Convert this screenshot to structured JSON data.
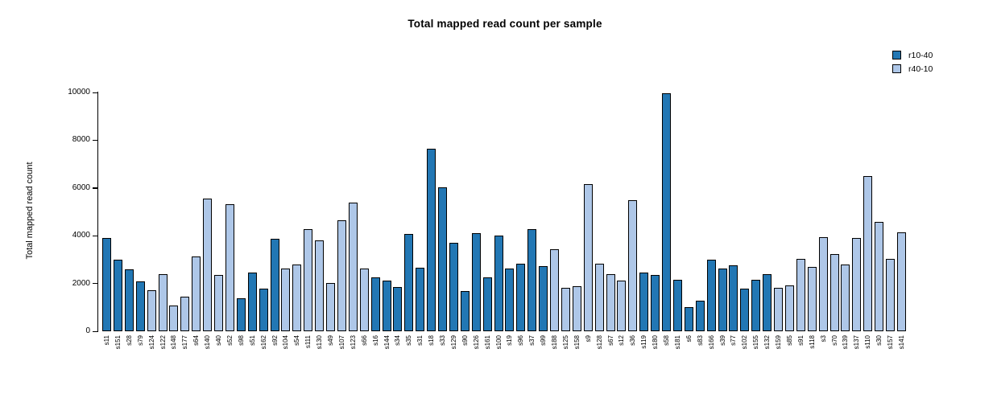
{
  "title": "Total mapped read count per sample",
  "y_axis": {
    "label": "Total mapped read count"
  },
  "legend": {
    "items": [
      {
        "label": "r10-40"
      },
      {
        "label": "r40-10"
      }
    ]
  },
  "colors": {
    "dark_blue": "#2277b4",
    "light_blue": "#aec7e8",
    "bar_border": "#000000"
  },
  "chart_data": {
    "type": "bar",
    "title": "Total mapped read count per sample",
    "xlabel": "",
    "ylabel": "Total mapped read count",
    "ylim": [
      0,
      10000
    ],
    "yticks": [
      0,
      2000,
      4000,
      6000,
      8000,
      10000
    ],
    "grid": false,
    "legend_position": "top-right",
    "x_label_rotation": 90,
    "series": [
      {
        "name": "r10-40",
        "color": "#2277b4"
      },
      {
        "name": "r40-10",
        "color": "#aec7e8"
      }
    ],
    "bars": [
      {
        "sample": "s11",
        "value": 3900,
        "group": "r10-40"
      },
      {
        "sample": "s151",
        "value": 2990,
        "group": "r10-40"
      },
      {
        "sample": "s28",
        "value": 2580,
        "group": "r10-40"
      },
      {
        "sample": "s79",
        "value": 2090,
        "group": "r10-40"
      },
      {
        "sample": "s124",
        "value": 1730,
        "group": "r40-10"
      },
      {
        "sample": "s122",
        "value": 2390,
        "group": "r40-10"
      },
      {
        "sample": "s148",
        "value": 1090,
        "group": "r40-10"
      },
      {
        "sample": "s177",
        "value": 1440,
        "group": "r40-10"
      },
      {
        "sample": "s64",
        "value": 3120,
        "group": "r40-10"
      },
      {
        "sample": "s140",
        "value": 5560,
        "group": "r40-10"
      },
      {
        "sample": "s40",
        "value": 2350,
        "group": "r40-10"
      },
      {
        "sample": "s52",
        "value": 5310,
        "group": "r40-10"
      },
      {
        "sample": "s98",
        "value": 1380,
        "group": "r10-40"
      },
      {
        "sample": "s51",
        "value": 2450,
        "group": "r10-40"
      },
      {
        "sample": "s162",
        "value": 1770,
        "group": "r10-40"
      },
      {
        "sample": "s92",
        "value": 3860,
        "group": "r10-40"
      },
      {
        "sample": "s104",
        "value": 2640,
        "group": "r40-10"
      },
      {
        "sample": "s54",
        "value": 2800,
        "group": "r40-10"
      },
      {
        "sample": "s111",
        "value": 4290,
        "group": "r40-10"
      },
      {
        "sample": "s130",
        "value": 3820,
        "group": "r40-10"
      },
      {
        "sample": "s49",
        "value": 2010,
        "group": "r40-10"
      },
      {
        "sample": "s107",
        "value": 4650,
        "group": "r40-10"
      },
      {
        "sample": "s123",
        "value": 5390,
        "group": "r40-10"
      },
      {
        "sample": "s66",
        "value": 2640,
        "group": "r40-10"
      },
      {
        "sample": "s16",
        "value": 2260,
        "group": "r10-40"
      },
      {
        "sample": "s144",
        "value": 2110,
        "group": "r10-40"
      },
      {
        "sample": "s34",
        "value": 1840,
        "group": "r10-40"
      },
      {
        "sample": "s35",
        "value": 4090,
        "group": "r10-40"
      },
      {
        "sample": "s31",
        "value": 2670,
        "group": "r10-40"
      },
      {
        "sample": "s18",
        "value": 7650,
        "group": "r10-40"
      },
      {
        "sample": "s33",
        "value": 6040,
        "group": "r10-40"
      },
      {
        "sample": "s129",
        "value": 3720,
        "group": "r10-40"
      },
      {
        "sample": "s90",
        "value": 1700,
        "group": "r10-40"
      },
      {
        "sample": "s126",
        "value": 4110,
        "group": "r10-40"
      },
      {
        "sample": "s161",
        "value": 2250,
        "group": "r10-40"
      },
      {
        "sample": "s100",
        "value": 3990,
        "group": "r10-40"
      },
      {
        "sample": "s19",
        "value": 2630,
        "group": "r10-40"
      },
      {
        "sample": "s96",
        "value": 2830,
        "group": "r10-40"
      },
      {
        "sample": "s37",
        "value": 4280,
        "group": "r10-40"
      },
      {
        "sample": "s99",
        "value": 2720,
        "group": "r10-40"
      },
      {
        "sample": "s188",
        "value": 3430,
        "group": "r40-10"
      },
      {
        "sample": "s125",
        "value": 1820,
        "group": "r40-10"
      },
      {
        "sample": "s158",
        "value": 1900,
        "group": "r40-10"
      },
      {
        "sample": "s9",
        "value": 6150,
        "group": "r40-10"
      },
      {
        "sample": "s128",
        "value": 2840,
        "group": "r40-10"
      },
      {
        "sample": "s67",
        "value": 2380,
        "group": "r40-10"
      },
      {
        "sample": "s12",
        "value": 2110,
        "group": "r40-10"
      },
      {
        "sample": "s36",
        "value": 5480,
        "group": "r40-10"
      },
      {
        "sample": "s119",
        "value": 2460,
        "group": "r10-40"
      },
      {
        "sample": "s180",
        "value": 2350,
        "group": "r10-40"
      },
      {
        "sample": "s58",
        "value": 9950,
        "group": "r10-40"
      },
      {
        "sample": "s181",
        "value": 2140,
        "group": "r10-40"
      },
      {
        "sample": "s6",
        "value": 1000,
        "group": "r10-40"
      },
      {
        "sample": "s83",
        "value": 1270,
        "group": "r10-40"
      },
      {
        "sample": "s166",
        "value": 2980,
        "group": "r10-40"
      },
      {
        "sample": "s39",
        "value": 2620,
        "group": "r10-40"
      },
      {
        "sample": "s77",
        "value": 2770,
        "group": "r10-40"
      },
      {
        "sample": "s102",
        "value": 1770,
        "group": "r10-40"
      },
      {
        "sample": "s155",
        "value": 2170,
        "group": "r10-40"
      },
      {
        "sample": "s132",
        "value": 2390,
        "group": "r10-40"
      },
      {
        "sample": "s159",
        "value": 1830,
        "group": "r40-10"
      },
      {
        "sample": "s85",
        "value": 1930,
        "group": "r40-10"
      },
      {
        "sample": "s91",
        "value": 3040,
        "group": "r40-10"
      },
      {
        "sample": "s118",
        "value": 2700,
        "group": "r40-10"
      },
      {
        "sample": "s3",
        "value": 3950,
        "group": "r40-10"
      },
      {
        "sample": "s70",
        "value": 3240,
        "group": "r40-10"
      },
      {
        "sample": "s139",
        "value": 2800,
        "group": "r40-10"
      },
      {
        "sample": "s137",
        "value": 3910,
        "group": "r40-10"
      },
      {
        "sample": "s110",
        "value": 6490,
        "group": "r40-10"
      },
      {
        "sample": "s30",
        "value": 4580,
        "group": "r40-10"
      },
      {
        "sample": "s157",
        "value": 3040,
        "group": "r40-10"
      },
      {
        "sample": "s141",
        "value": 4150,
        "group": "r40-10"
      }
    ]
  }
}
